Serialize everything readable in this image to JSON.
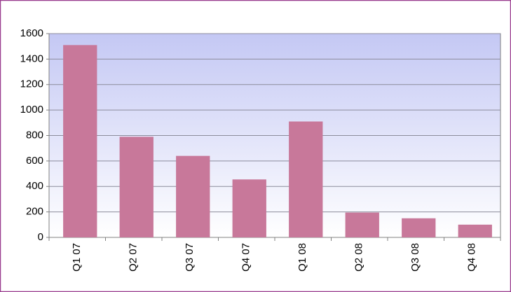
{
  "chart_data": {
    "type": "bar",
    "categories": [
      "Q1 07",
      "Q2 07",
      "Q3 07",
      "Q4 07",
      "Q1 08",
      "Q2 08",
      "Q3 08",
      "Q4 08"
    ],
    "values": [
      1510,
      790,
      640,
      455,
      910,
      195,
      150,
      100
    ],
    "color": "#c8789a",
    "ylim": [
      0,
      1600
    ],
    "yticks": [
      0,
      200,
      400,
      600,
      800,
      1000,
      1200,
      1400,
      1600
    ],
    "grid": true
  }
}
